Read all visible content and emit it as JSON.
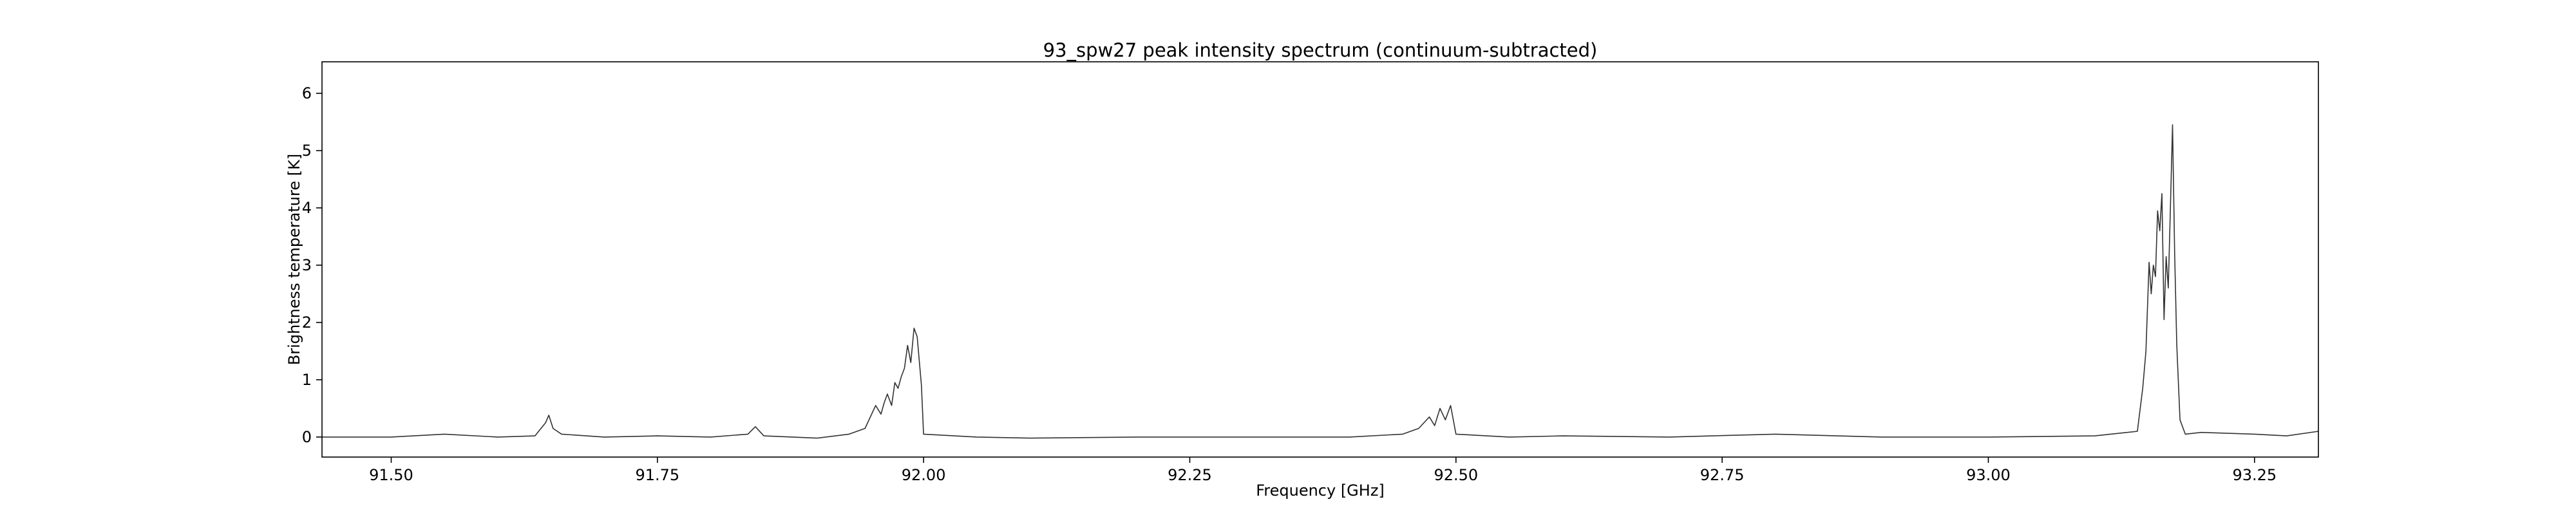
{
  "chart_data": {
    "type": "line",
    "title": "93_spw27 peak intensity spectrum (continuum-subtracted)",
    "xlabel": "Frequency [GHz]",
    "ylabel": "Brightness temperature [K]",
    "xlim": [
      91.435,
      93.31
    ],
    "ylim": [
      -0.35,
      6.55
    ],
    "xticks": [
      91.5,
      91.75,
      92.0,
      92.25,
      92.5,
      92.75,
      93.0,
      93.25
    ],
    "xtick_labels": [
      "91.50",
      "91.75",
      "92.00",
      "92.25",
      "92.50",
      "92.75",
      "93.00",
      "93.25"
    ],
    "yticks": [
      0,
      1,
      2,
      3,
      4,
      5,
      6
    ],
    "ytick_labels": [
      "0",
      "1",
      "2",
      "3",
      "4",
      "5",
      "6"
    ],
    "grid": false,
    "series": [
      {
        "color": "#333333",
        "x": [
          91.435,
          91.5,
          91.55,
          91.6,
          91.635,
          91.645,
          91.648,
          91.652,
          91.66,
          91.7,
          91.75,
          91.8,
          91.835,
          91.842,
          91.85,
          91.9,
          91.93,
          91.945,
          91.955,
          91.96,
          91.963,
          91.966,
          91.97,
          91.973,
          91.976,
          91.979,
          91.982,
          91.985,
          91.988,
          91.991,
          91.994,
          91.998,
          92.0,
          92.05,
          92.1,
          92.2,
          92.3,
          92.4,
          92.45,
          92.465,
          92.475,
          92.48,
          92.485,
          92.49,
          92.495,
          92.5,
          92.55,
          92.6,
          92.7,
          92.8,
          92.9,
          93.0,
          93.1,
          93.14,
          93.145,
          93.148,
          93.151,
          93.153,
          93.155,
          93.157,
          93.159,
          93.161,
          93.163,
          93.165,
          93.167,
          93.169,
          93.171,
          93.173,
          93.175,
          93.177,
          93.18,
          93.185,
          93.2,
          93.25,
          93.28,
          93.31
        ],
        "y": [
          0.0,
          0.0,
          0.05,
          0.0,
          0.02,
          0.25,
          0.38,
          0.15,
          0.05,
          0.0,
          0.02,
          0.0,
          0.05,
          0.18,
          0.02,
          -0.02,
          0.05,
          0.15,
          0.55,
          0.4,
          0.6,
          0.75,
          0.55,
          0.95,
          0.85,
          1.05,
          1.2,
          1.6,
          1.3,
          1.9,
          1.75,
          0.9,
          0.05,
          0.0,
          -0.02,
          0.0,
          0.0,
          0.0,
          0.05,
          0.15,
          0.35,
          0.2,
          0.5,
          0.3,
          0.55,
          0.05,
          0.0,
          0.02,
          0.0,
          0.05,
          0.0,
          0.0,
          0.02,
          0.1,
          0.85,
          1.5,
          3.05,
          2.5,
          3.0,
          2.8,
          3.95,
          3.6,
          4.25,
          2.05,
          3.15,
          2.6,
          4.0,
          5.45,
          3.2,
          1.6,
          0.3,
          0.05,
          0.08,
          0.05,
          0.02,
          0.1
        ]
      }
    ]
  }
}
